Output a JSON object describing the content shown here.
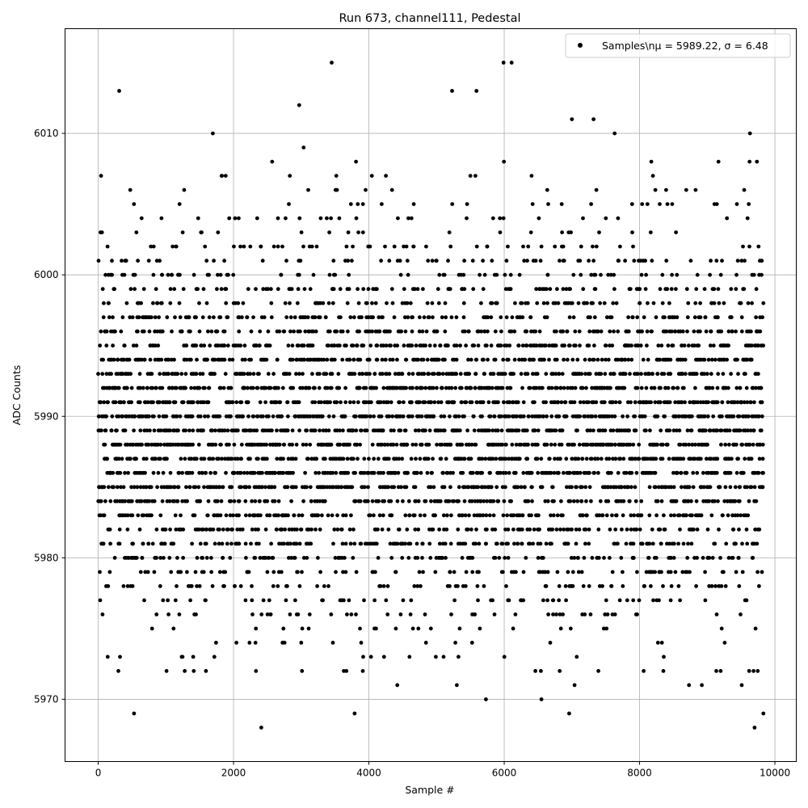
{
  "chart_data": {
    "type": "scatter",
    "title": "Run 673, channel111, Pedestal",
    "xlabel": "Sample #",
    "ylabel": "ADC Counts",
    "xlim": [
      -490,
      10316
    ],
    "ylim": [
      5965.6,
      6017.4
    ],
    "xticks": [
      0,
      2000,
      4000,
      6000,
      8000,
      10000
    ],
    "xtick_labels": [
      "0",
      "2000",
      "4000",
      "6000",
      "8000",
      "10000"
    ],
    "yticks": [
      5970,
      5980,
      5990,
      6000,
      6010
    ],
    "ytick_labels": [
      "5970",
      "5980",
      "5990",
      "6000",
      "6010"
    ],
    "grid": true,
    "legend": {
      "placement": "top-right",
      "entries": [
        "Samples\\n$\\mu$ = 5989.22, $\\sigma$ = 6.48"
      ],
      "display": "Samples\\nμ = 5989.22, σ = 6.48"
    },
    "marker_color": "#000000",
    "series": [
      {
        "name": "Samples",
        "sample_range": [
          0,
          9830
        ],
        "mean": 5989.22,
        "sigma": 6.48,
        "value_min": 5968,
        "value_max": 6015,
        "outliers": [
          [
            310,
            6013
          ],
          [
            530,
            5969
          ],
          [
            1010,
            5972
          ],
          [
            2410,
            5968
          ],
          [
            2970,
            6012
          ],
          [
            3450,
            6015
          ],
          [
            3790,
            5969
          ],
          [
            4420,
            5971
          ],
          [
            5230,
            6013
          ],
          [
            5300,
            5971
          ],
          [
            5590,
            6013
          ],
          [
            5730,
            5970
          ],
          [
            5990,
            6015
          ],
          [
            6110,
            6015
          ],
          [
            6550,
            5970
          ],
          [
            6960,
            5969
          ],
          [
            7000,
            6011
          ],
          [
            7040,
            5971
          ],
          [
            7320,
            6011
          ],
          [
            8730,
            5971
          ],
          [
            8920,
            5971
          ],
          [
            9510,
            5971
          ],
          [
            9700,
            5968
          ],
          [
            9830,
            5969
          ]
        ]
      }
    ]
  }
}
